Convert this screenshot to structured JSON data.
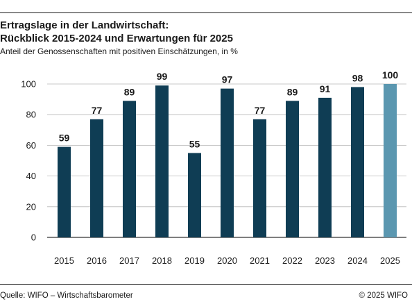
{
  "header": {
    "title_line1": "Ertragslage in der Landwirtschaft:",
    "title_line2": "Rückblick 2015-2024 und Erwartungen für 2025",
    "subtitle": "Anteil der Genossenschaften mit positiven Einschätzungen, in %"
  },
  "footer": {
    "source": "Quelle: WIFO – Wirtschaftsbarometer",
    "copyright": "© 2025 WIFO"
  },
  "chart_data": {
    "type": "bar",
    "title": "Ertragslage in der Landwirtschaft: Rückblick 2015-2024 und Erwartungen für 2025",
    "subtitle": "Anteil der Genossenschaften mit positiven Einschätzungen, in %",
    "categories": [
      "2015",
      "2016",
      "2017",
      "2018",
      "2019",
      "2020",
      "2021",
      "2022",
      "2023",
      "2024",
      "2025"
    ],
    "values": [
      59,
      77,
      89,
      99,
      55,
      97,
      77,
      89,
      91,
      98,
      100
    ],
    "ylim": [
      0,
      100
    ],
    "yticks": [
      0,
      20,
      40,
      60,
      80,
      100
    ],
    "grid": true,
    "colors": {
      "bar": "#0f3d54",
      "bar_forecast": "#5b97b0",
      "grid": "#b7b7b7",
      "axis": "#333333"
    },
    "forecast_categories": [
      "2025"
    ]
  }
}
